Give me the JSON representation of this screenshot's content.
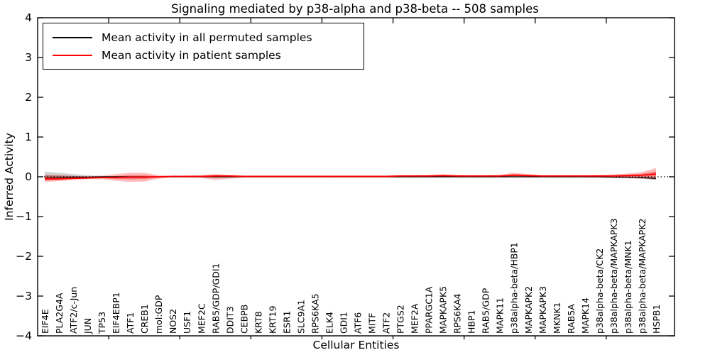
{
  "figure": {
    "title": "Signaling mediated by p38-alpha and p38-beta -- 508 samples",
    "xlabel": "Cellular Entities",
    "ylabel": "Inferred Activity"
  },
  "legend": {
    "items": [
      {
        "label": "Mean activity in all permuted samples",
        "color": "#000000"
      },
      {
        "label": "Mean activity in patient samples",
        "color": "#ff0000"
      }
    ]
  },
  "chart_data": {
    "type": "line",
    "title": "Signaling mediated by p38-alpha and p38-beta -- 508 samples",
    "xlabel": "Cellular Entities",
    "ylabel": "Inferred Activity",
    "ylim": [
      -4,
      4
    ],
    "ytick_labels": [
      "4",
      "3",
      "2",
      "1",
      "0",
      "−1",
      "−2",
      "−3",
      "−4"
    ],
    "grid": false,
    "legend_position": "upper left",
    "zero_reference_line": "dotted black at y=0",
    "categories": [
      "EIF4E",
      "PLA2G4A",
      "ATF2/c-Jun",
      "JUN",
      "TP53",
      "EIF4EBP1",
      "ATF1",
      "CREB1",
      "mol:GDP",
      "NOS2",
      "USF1",
      "MEF2C",
      "RAB5/GDP/GDI1",
      "DDIT3",
      "CEBPB",
      "KRT8",
      "KRT19",
      "ESR1",
      "SLC9A1",
      "RPS6KA5",
      "ELK4",
      "GDI1",
      "ATF6",
      "MITF",
      "ATF2",
      "PTGS2",
      "MEF2A",
      "PPARGC1A",
      "MAPKAPK5",
      "RPS6KA4",
      "HBP1",
      "RAB5/GDP",
      "MAPK11",
      "p38alpha-beta/HBP1",
      "MAPKAPK2",
      "MAPKAPK3",
      "MKNK1",
      "RAB5A",
      "MAPK14",
      "p38alpha-beta/CK2",
      "p38alpha-beta/MAPKAPK3",
      "p38alpha-beta/MNK1",
      "p38alpha-beta/MAPKAPK2",
      "HSPB1"
    ],
    "series": [
      {
        "name": "Mean activity in all permuted samples",
        "color": "#000000",
        "band_opacity": 0.18,
        "values": [
          -0.04,
          -0.03,
          -0.02,
          -0.01,
          0,
          0,
          0,
          0,
          0,
          0,
          0,
          0,
          0,
          0,
          0,
          0,
          0,
          0,
          0,
          0,
          0,
          0,
          0,
          0,
          0,
          0,
          0,
          0,
          0,
          0,
          0,
          0,
          0,
          0,
          0,
          0,
          0,
          0,
          0,
          0,
          -0.01,
          -0.01,
          -0.02,
          -0.04
        ],
        "band_upper": [
          0.13,
          0.1,
          0.07,
          0.04,
          0.02,
          0.01,
          0.01,
          0.01,
          0.01,
          0.01,
          0.01,
          0.01,
          0.01,
          0.01,
          0.01,
          0.01,
          0.01,
          0.01,
          0.01,
          0.01,
          0.01,
          0.01,
          0.01,
          0.01,
          0.01,
          0.01,
          0.01,
          0.01,
          0.01,
          0.01,
          0.01,
          0.01,
          0.01,
          0.01,
          0.01,
          0.01,
          0.01,
          0.01,
          0.01,
          0.01,
          0.01,
          0.0,
          0.0,
          0.0
        ],
        "band_lower": [
          -0.1,
          -0.08,
          -0.05,
          -0.03,
          -0.02,
          -0.01,
          -0.01,
          -0.01,
          -0.01,
          -0.01,
          -0.01,
          -0.01,
          -0.01,
          -0.01,
          -0.01,
          -0.01,
          -0.01,
          -0.01,
          -0.01,
          -0.01,
          -0.01,
          -0.01,
          -0.01,
          -0.01,
          -0.01,
          -0.01,
          -0.01,
          -0.01,
          -0.01,
          -0.01,
          -0.01,
          -0.01,
          -0.01,
          -0.01,
          -0.01,
          -0.01,
          -0.01,
          -0.01,
          -0.01,
          -0.01,
          -0.02,
          -0.03,
          -0.05,
          -0.08
        ]
      },
      {
        "name": "Mean activity in patient samples",
        "color": "#ff0000",
        "band_opacity": 0.25,
        "values": [
          -0.05,
          -0.05,
          -0.04,
          -0.03,
          -0.02,
          -0.02,
          -0.01,
          -0.01,
          0,
          0.01,
          0.01,
          0.01,
          0.02,
          0.02,
          0.01,
          0.01,
          0.01,
          0.01,
          0.01,
          0.01,
          0.01,
          0.01,
          0.01,
          0.01,
          0.01,
          0.02,
          0.02,
          0.02,
          0.03,
          0.02,
          0.02,
          0.02,
          0.02,
          0.04,
          0.03,
          0.02,
          0.02,
          0.02,
          0.02,
          0.02,
          0.02,
          0.03,
          0.04,
          0.07
        ],
        "band_upper": [
          0.05,
          0.04,
          0.02,
          0.01,
          0.03,
          0.07,
          0.1,
          0.1,
          0.04,
          0.02,
          0.03,
          0.04,
          0.07,
          0.05,
          0.03,
          0.03,
          0.03,
          0.03,
          0.03,
          0.03,
          0.03,
          0.03,
          0.03,
          0.03,
          0.03,
          0.04,
          0.04,
          0.05,
          0.06,
          0.05,
          0.04,
          0.04,
          0.05,
          0.1,
          0.07,
          0.04,
          0.04,
          0.04,
          0.04,
          0.05,
          0.06,
          0.08,
          0.12,
          0.22
        ],
        "band_lower": [
          -0.13,
          -0.11,
          -0.08,
          -0.06,
          -0.06,
          -0.1,
          -0.13,
          -0.12,
          -0.05,
          -0.02,
          -0.02,
          -0.03,
          -0.08,
          -0.05,
          -0.02,
          -0.02,
          -0.02,
          -0.02,
          -0.02,
          -0.02,
          -0.02,
          -0.02,
          -0.02,
          -0.02,
          -0.02,
          -0.02,
          -0.02,
          -0.02,
          -0.02,
          -0.02,
          -0.02,
          -0.02,
          -0.02,
          -0.02,
          -0.02,
          -0.02,
          -0.02,
          -0.02,
          -0.02,
          -0.03,
          -0.03,
          -0.04,
          -0.05,
          -0.07
        ]
      }
    ]
  }
}
